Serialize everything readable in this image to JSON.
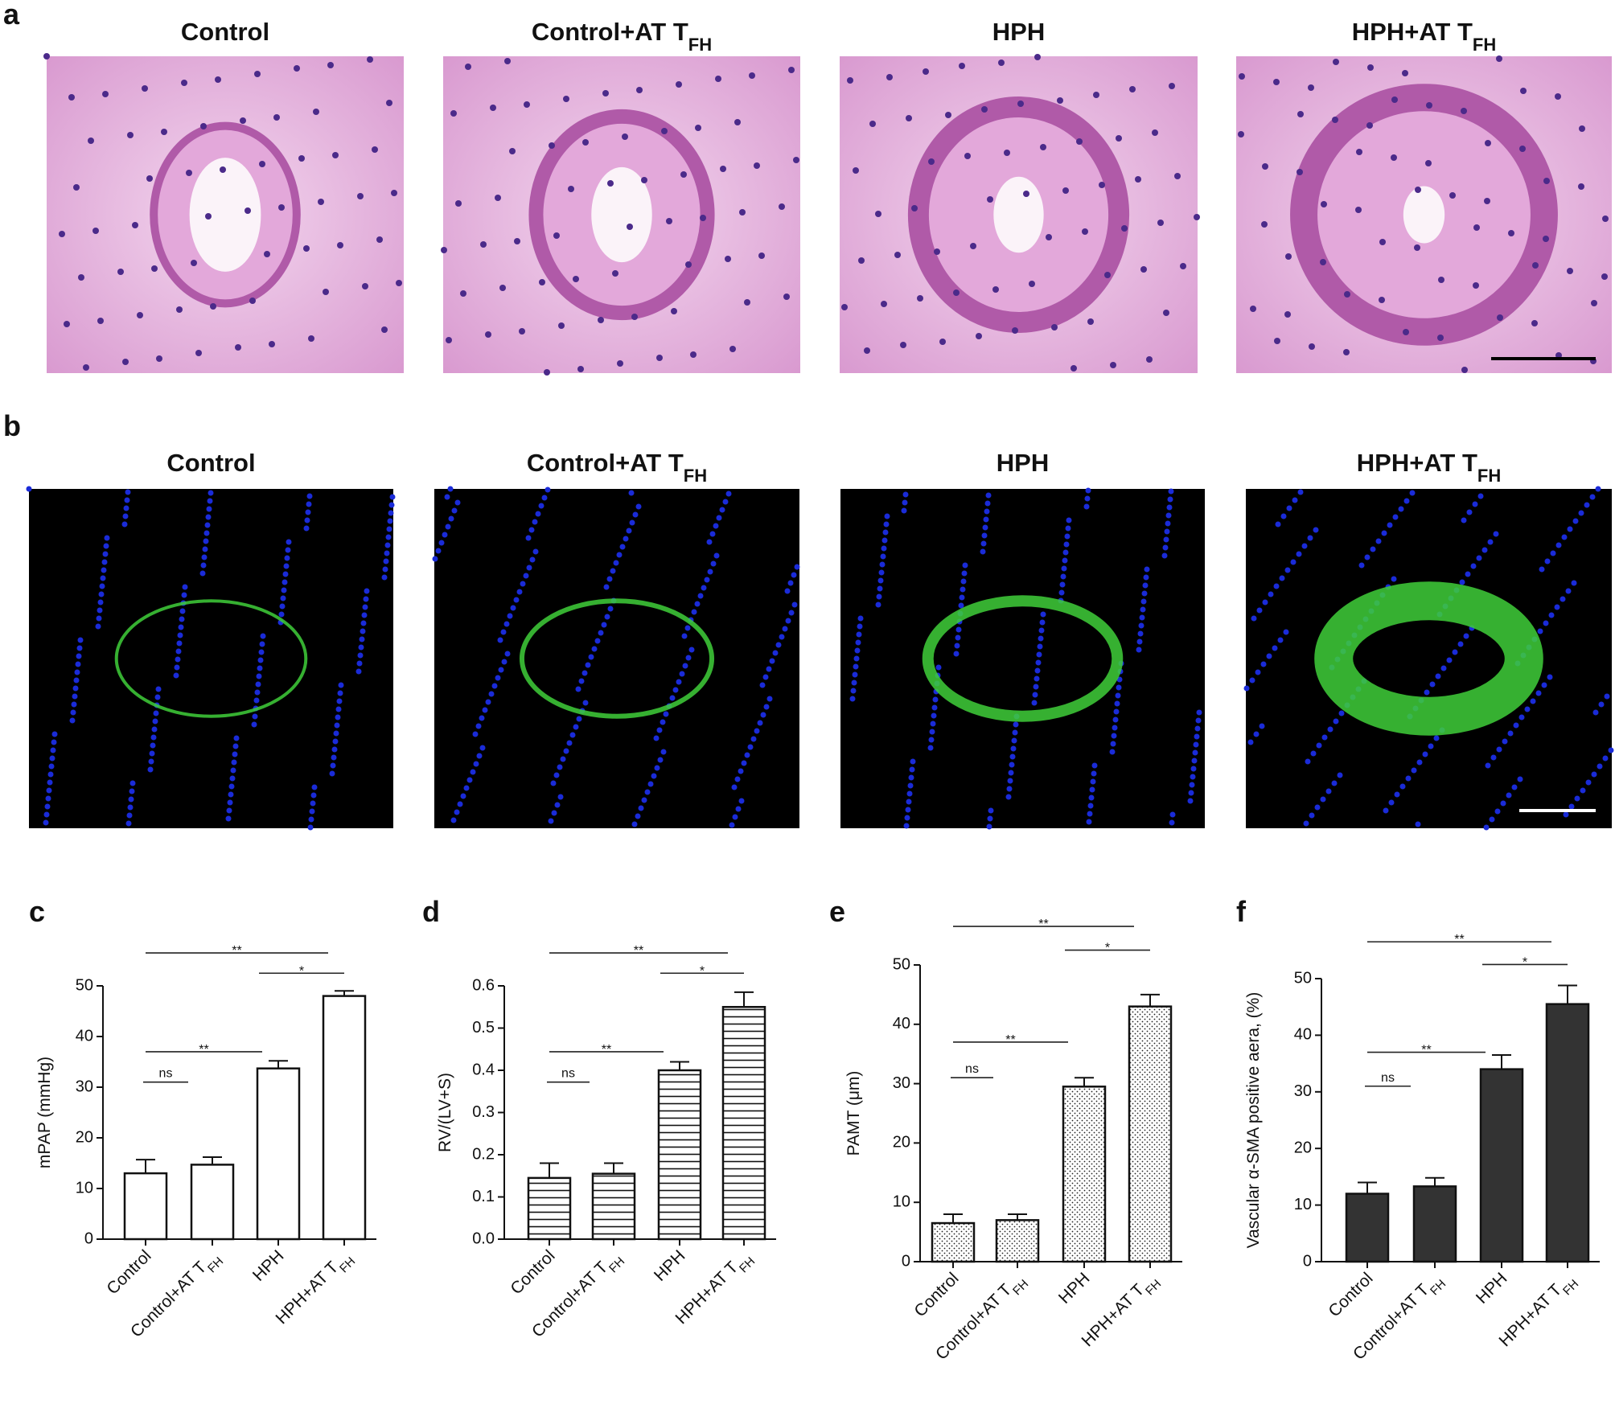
{
  "image_rows": [
    {
      "label": "a",
      "stain": "he",
      "titles": [
        {
          "text": "Control"
        },
        {
          "text": "Control+AT T",
          "sub": "FH"
        },
        {
          "text": "HPH"
        },
        {
          "text": "HPH+AT T",
          "sub": "FH"
        }
      ]
    },
    {
      "label": "b",
      "stain": "if",
      "titles": [
        {
          "text": "Control"
        },
        {
          "text": "Control+AT T",
          "sub": "FH"
        },
        {
          "text": "HPH"
        },
        {
          "text": "HPH+AT T",
          "sub": "FH"
        }
      ]
    }
  ],
  "chart_data": [
    {
      "type": "bar",
      "panel": "c",
      "y_label": "mPAP (mmHg)",
      "categories": [
        "Control",
        "Control+AT T",
        "HPH",
        "HPH+AT T"
      ],
      "category_subscripts": [
        null,
        "FH",
        null,
        "FH"
      ],
      "values": [
        13,
        14.7,
        33.7,
        48
      ],
      "errors": [
        2.7,
        1.5,
        1.5,
        1
      ],
      "fill": "none",
      "color": "#111111",
      "ylim": [
        0,
        50
      ],
      "yticks": [
        0,
        10,
        20,
        30,
        40,
        50
      ],
      "comparisons": [
        {
          "from": 0,
          "to": 1,
          "label": "ns"
        },
        {
          "from": 0,
          "to": 2,
          "label": "**"
        },
        {
          "from": 2,
          "to": 3,
          "label": "*"
        },
        {
          "from": 0,
          "to": 3,
          "label": "**"
        }
      ]
    },
    {
      "type": "bar",
      "panel": "d",
      "y_label": "RV/(LV+S)",
      "categories": [
        "Control",
        "Control+AT T",
        "HPH",
        "HPH+AT T"
      ],
      "category_subscripts": [
        null,
        "FH",
        null,
        "FH"
      ],
      "values": [
        0.145,
        0.155,
        0.4,
        0.55
      ],
      "errors": [
        0.035,
        0.025,
        0.02,
        0.035
      ],
      "fill": "hlines",
      "color": "#111111",
      "ylim": [
        0,
        0.6
      ],
      "yticks": [
        {
          "value": 0,
          "label": "0.0"
        },
        0.1,
        0.2,
        0.3,
        0.4,
        0.5,
        0.6
      ],
      "comparisons": [
        {
          "from": 0,
          "to": 1,
          "label": "ns"
        },
        {
          "from": 0,
          "to": 2,
          "label": "**"
        },
        {
          "from": 2,
          "to": 3,
          "label": "*"
        },
        {
          "from": 0,
          "to": 3,
          "label": "**"
        }
      ]
    },
    {
      "type": "bar",
      "panel": "e",
      "y_label": "PAMT (μm)",
      "categories": [
        "Control",
        "Control+AT T",
        "HPH",
        "HPH+AT T"
      ],
      "category_subscripts": [
        null,
        "FH",
        null,
        "FH"
      ],
      "values": [
        6.5,
        7,
        29.5,
        43
      ],
      "errors": [
        1.5,
        1,
        1.5,
        2
      ],
      "fill": "dots",
      "color": "#111111",
      "ylim": [
        0,
        50
      ],
      "yticks": [
        0,
        10,
        20,
        30,
        40,
        50
      ],
      "comparisons": [
        {
          "from": 0,
          "to": 1,
          "label": "ns"
        },
        {
          "from": 0,
          "to": 2,
          "label": "**"
        },
        {
          "from": 2,
          "to": 3,
          "label": "*"
        },
        {
          "from": 0,
          "to": 3,
          "label": "**"
        }
      ]
    },
    {
      "type": "bar",
      "panel": "f",
      "y_label": "Vascular α-SMA positive aera, (%)",
      "categories": [
        "Control",
        "Control+AT T",
        "HPH",
        "HPH+AT T"
      ],
      "category_subscripts": [
        null,
        "FH",
        null,
        "FH"
      ],
      "values": [
        12,
        13.3,
        34,
        45.5
      ],
      "errors": [
        2,
        1.5,
        2.5,
        3.3
      ],
      "fill": "solid",
      "color": "#333333",
      "ylim": [
        0,
        50
      ],
      "yticks": [
        0,
        10,
        20,
        30,
        40,
        50
      ],
      "comparisons": [
        {
          "from": 0,
          "to": 1,
          "label": "ns"
        },
        {
          "from": 0,
          "to": 2,
          "label": "**"
        },
        {
          "from": 2,
          "to": 3,
          "label": "*"
        },
        {
          "from": 0,
          "to": 3,
          "label": "**"
        }
      ]
    }
  ]
}
